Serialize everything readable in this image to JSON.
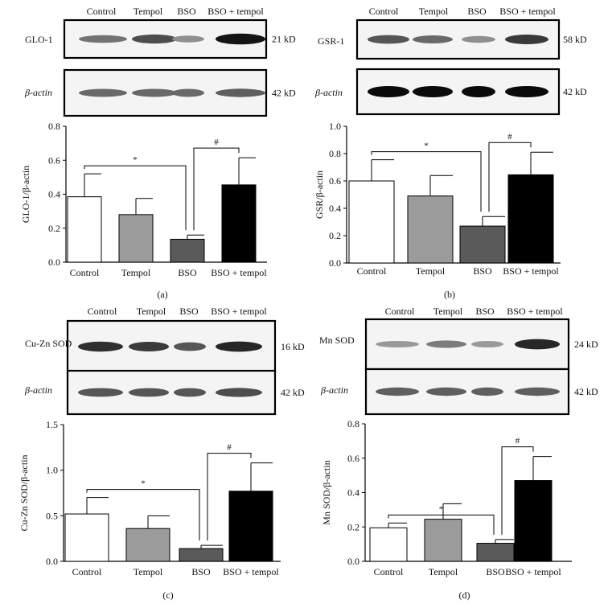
{
  "panels": [
    {
      "label": "(a)",
      "lanes": [
        "Control",
        "Tempol",
        "BSO",
        "BSO + tempol"
      ],
      "blots": [
        {
          "name": "GLO-1",
          "size": "21 kD",
          "intensity": [
            0.45,
            0.65,
            0.3,
            0.95
          ]
        },
        {
          "name": "β-actin",
          "italic_prefix": "β",
          "size": "42 kD",
          "intensity": [
            0.5,
            0.5,
            0.5,
            0.55
          ]
        }
      ]
    },
    {
      "label": "(b)",
      "lanes": [
        "Control",
        "Tempol",
        "BSO",
        "BSO + tempol"
      ],
      "blots": [
        {
          "name": "GSR-1",
          "size": "58 kD",
          "intensity": [
            0.6,
            0.5,
            0.3,
            0.75
          ]
        },
        {
          "name": "β-actin",
          "italic_prefix": "β",
          "size": "42 kD",
          "intensity": [
            1.0,
            1.0,
            1.0,
            1.0
          ]
        }
      ]
    },
    {
      "label": "(c)",
      "lanes": [
        "Control",
        "Tempol",
        "BSO",
        "BSO + tempol"
      ],
      "blots": [
        {
          "name": "Cu-Zn SOD",
          "size": "16 kD",
          "intensity": [
            0.8,
            0.75,
            0.6,
            0.85
          ]
        },
        {
          "name": "β-actin",
          "italic_prefix": "β",
          "size": "42 kD",
          "intensity": [
            0.6,
            0.6,
            0.6,
            0.65
          ]
        }
      ]
    },
    {
      "label": "(d)",
      "lanes": [
        "Control",
        "Tempol",
        "BSO",
        "BSO + tempol"
      ],
      "blots": [
        {
          "name": "Mn SOD",
          "size": "24 kD",
          "intensity": [
            0.25,
            0.4,
            0.25,
            0.85
          ]
        },
        {
          "name": "β-actin",
          "italic_prefix": "β",
          "size": "42 kD",
          "intensity": [
            0.55,
            0.55,
            0.55,
            0.55
          ]
        }
      ]
    }
  ],
  "colors": {
    "Control": "#ffffff",
    "Tempol": "#9b9b9b",
    "BSO": "#5a5a5a",
    "BSO + tempol": "#000000"
  },
  "chart_data": [
    {
      "type": "bar",
      "categories": [
        "Control",
        "Tempol",
        "BSO",
        "BSO + tempol"
      ],
      "values": [
        0.385,
        0.28,
        0.135,
        0.455
      ],
      "errors": [
        0.135,
        0.095,
        0.025,
        0.16
      ],
      "ylabel": "GLO-1/β-actin",
      "ylim": [
        0,
        0.8
      ],
      "yticks": [
        "0.0",
        "0.2",
        "0.4",
        "0.6",
        "0.8"
      ],
      "significance": [
        {
          "from": 0,
          "to": 2,
          "symbol": "*"
        },
        {
          "from": 2,
          "to": 3,
          "symbol": "#"
        }
      ]
    },
    {
      "type": "bar",
      "categories": [
        "Control",
        "Tempol",
        "BSO",
        "BSO + tempol"
      ],
      "values": [
        0.6,
        0.49,
        0.27,
        0.645
      ],
      "errors": [
        0.155,
        0.15,
        0.07,
        0.165
      ],
      "ylabel": "GSR/β-actin",
      "ylim": [
        0,
        1.0
      ],
      "yticks": [
        "0.0",
        "0.2",
        "0.4",
        "0.6",
        "0.8",
        "1.0"
      ],
      "significance": [
        {
          "from": 0,
          "to": 2,
          "symbol": "*"
        },
        {
          "from": 2,
          "to": 3,
          "symbol": "#"
        }
      ]
    },
    {
      "type": "bar",
      "categories": [
        "Control",
        "Tempol",
        "BSO",
        "BSO + tempol"
      ],
      "values": [
        0.52,
        0.36,
        0.14,
        0.77
      ],
      "errors": [
        0.18,
        0.14,
        0.035,
        0.31
      ],
      "ylabel": "Cu-Zn SOD/β-actin",
      "ylim": [
        0,
        1.5
      ],
      "yticks": [
        "0.0",
        "0.5",
        "1.0",
        "1.5"
      ],
      "significance": [
        {
          "from": 0,
          "to": 2,
          "symbol": "*"
        },
        {
          "from": 2,
          "to": 3,
          "symbol": "#"
        }
      ]
    },
    {
      "type": "bar",
      "categories": [
        "Control",
        "Tempol",
        "BSO",
        "BSO + tempol"
      ],
      "values": [
        0.195,
        0.245,
        0.105,
        0.47
      ],
      "errors": [
        0.028,
        0.09,
        0.022,
        0.14
      ],
      "ylabel": "Mn SOD/β-actin",
      "ylim": [
        0,
        0.8
      ],
      "yticks": [
        "0.0",
        "0.2",
        "0.4",
        "0.6",
        "0.8"
      ],
      "significance": [
        {
          "from": 0,
          "to": 2,
          "symbol": "*"
        },
        {
          "from": 2,
          "to": 3,
          "symbol": "#"
        }
      ]
    }
  ]
}
